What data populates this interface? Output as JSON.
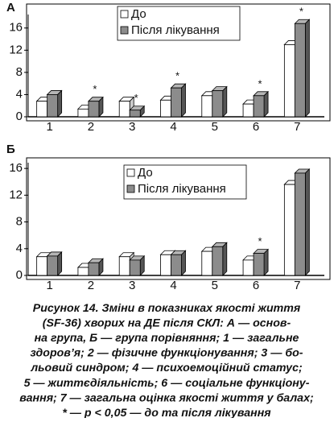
{
  "chart_data": [
    {
      "type": "bar",
      "title": "А",
      "categories": [
        "1",
        "2",
        "3",
        "4",
        "5",
        "6",
        "7"
      ],
      "series": [
        {
          "name": "До",
          "color": "#ffffff",
          "values": [
            2.8,
            1.4,
            2.8,
            3.0,
            3.8,
            2.3,
            13.0
          ]
        },
        {
          "name": "Після лікування",
          "color": "#8c8c8c",
          "values": [
            4.0,
            2.8,
            1.2,
            5.2,
            4.7,
            3.8,
            16.8
          ]
        }
      ],
      "ylim": [
        0,
        18
      ],
      "yticks": [
        0,
        4,
        8,
        12,
        16
      ],
      "annotations": [
        {
          "text": "*",
          "x": "2"
        },
        {
          "text": "*",
          "x": "3"
        },
        {
          "text": "*",
          "x": "4"
        },
        {
          "text": "*",
          "x": "6"
        },
        {
          "text": "*",
          "x": "7"
        }
      ]
    },
    {
      "type": "bar",
      "title": "Б",
      "categories": [
        "1",
        "2",
        "3",
        "4",
        "5",
        "6",
        "7"
      ],
      "series": [
        {
          "name": "До",
          "color": "#ffffff",
          "values": [
            2.8,
            1.2,
            2.8,
            3.1,
            3.6,
            2.3,
            13.6
          ]
        },
        {
          "name": "Після лікування",
          "color": "#8c8c8c",
          "values": [
            2.9,
            1.9,
            2.3,
            3.1,
            4.3,
            3.3,
            15.3
          ]
        }
      ],
      "ylim": [
        0,
        16.5
      ],
      "yticks": [
        0,
        4,
        8,
        12,
        16
      ],
      "annotations": [
        {
          "text": "*",
          "x": "6"
        }
      ]
    }
  ],
  "caption": [
    "Рисунок 14. Зміни в показниках якості життя",
    "(SF-36) хворих на ДЕ після СКЛ: А — основ-",
    "на група, Б — група порівняння; 1 — загальне",
    "здоров’я; 2 — фізичне функціонування; 3 — бо-",
    "льовий синдром; 4 — психоемоційний статус;",
    "5 — життєдіяльність; 6 — соціальне функціону-",
    "вання; 7 — загальна оцінка якості життя у балах;",
    "* — р < 0,05 — до та після лікування"
  ]
}
